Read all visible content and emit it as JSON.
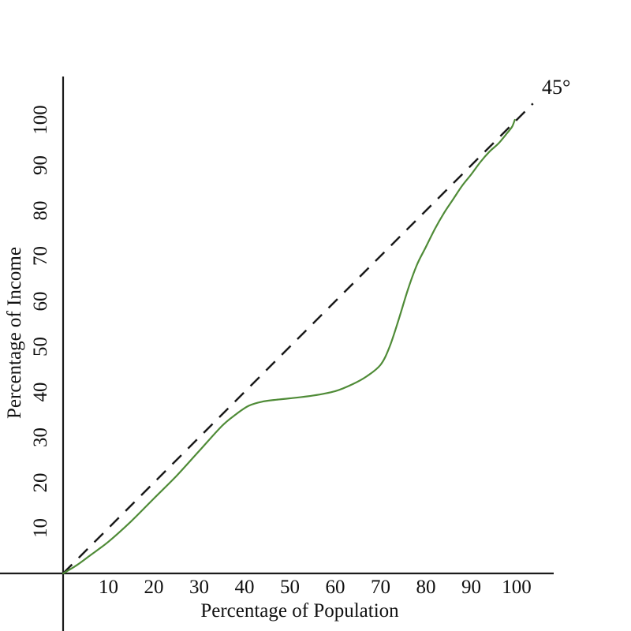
{
  "page": {
    "background_color": "#ffffff"
  },
  "chart_data": {
    "type": "line",
    "title": "",
    "xlabel": "Percentage of Population",
    "ylabel": "Percentage of Income",
    "xlim": [
      0,
      100
    ],
    "ylim": [
      0,
      100
    ],
    "x_ticks": [
      10,
      20,
      30,
      40,
      50,
      60,
      70,
      80,
      90,
      100
    ],
    "y_ticks": [
      10,
      20,
      30,
      40,
      50,
      60,
      70,
      80,
      90,
      100
    ],
    "grid": false,
    "legend_position": "none",
    "reference_label": "45°",
    "colors": {
      "axis": "#1b1b1b",
      "equality_line": "#1b1b1b",
      "lorenz_curve": "#4f8b37",
      "text": "#111111"
    },
    "series": [
      {
        "name": "equality-line",
        "style": "dashed",
        "color": "#1b1b1b",
        "points": [
          [
            0,
            0
          ],
          [
            103.6,
            103.6
          ]
        ]
      },
      {
        "name": "lorenz-curve",
        "style": "smooth",
        "color": "#4f8b37",
        "points": [
          [
            0,
            0
          ],
          [
            3,
            1.8
          ],
          [
            6,
            4
          ],
          [
            10,
            7
          ],
          [
            15,
            11.5
          ],
          [
            20,
            16.5
          ],
          [
            25,
            21.5
          ],
          [
            30,
            27
          ],
          [
            35,
            32.5
          ],
          [
            38,
            35
          ],
          [
            41,
            37
          ],
          [
            44,
            37.9
          ],
          [
            47,
            38.3
          ],
          [
            50,
            38.6
          ],
          [
            55,
            39.2
          ],
          [
            60,
            40.2
          ],
          [
            64,
            41.8
          ],
          [
            67,
            43.5
          ],
          [
            70,
            46
          ],
          [
            72,
            50
          ],
          [
            74,
            56
          ],
          [
            76,
            62.5
          ],
          [
            78,
            68
          ],
          [
            80,
            72
          ],
          [
            82,
            76
          ],
          [
            84,
            79.5
          ],
          [
            86,
            82.5
          ],
          [
            88,
            85.5
          ],
          [
            90,
            88
          ],
          [
            92,
            90.7
          ],
          [
            94,
            93
          ],
          [
            96,
            94.8
          ],
          [
            98,
            97.2
          ],
          [
            99,
            98.5
          ],
          [
            99.6,
            100
          ]
        ]
      }
    ]
  }
}
